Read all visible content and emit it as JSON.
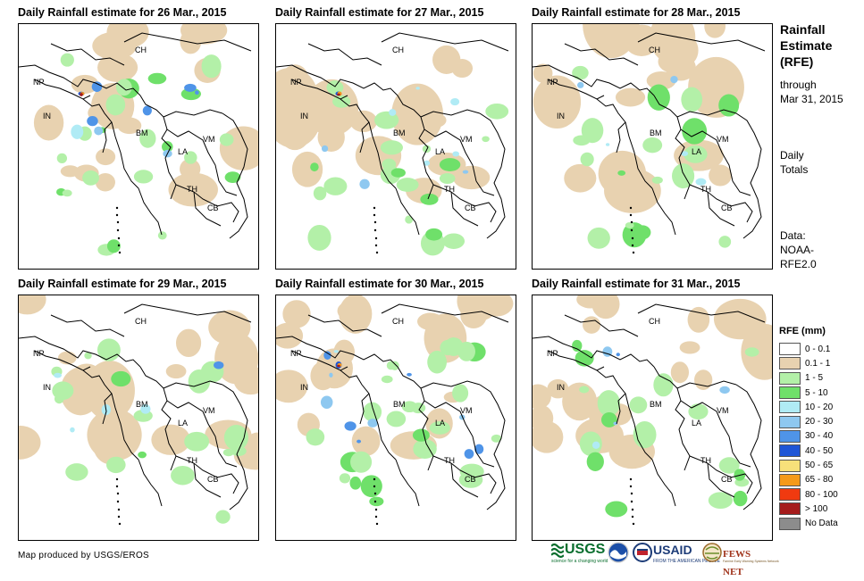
{
  "panels": [
    {
      "title": "Daily Rainfall estimate for 26 Mar., 2015",
      "wet_level": 2,
      "seed": 11
    },
    {
      "title": "Daily Rainfall estimate for 27 Mar., 2015",
      "wet_level": 2,
      "seed": 23
    },
    {
      "title": "Daily Rainfall estimate for 28 Mar., 2015",
      "wet_level": 1,
      "seed": 37
    },
    {
      "title": "Daily Rainfall estimate for 29 Mar., 2015",
      "wet_level": 1,
      "seed": 41
    },
    {
      "title": "Daily Rainfall estimate for 30 Mar., 2015",
      "wet_level": 3,
      "seed": 53
    },
    {
      "title": "Daily Rainfall estimate for 31 Mar., 2015",
      "wet_level": 1,
      "seed": 67
    }
  ],
  "country_labels": {
    "ch": "CH",
    "np": "NP",
    "in": "IN",
    "bm": "BM",
    "la": "LA",
    "vm": "VM",
    "th": "TH",
    "cb": "CB"
  },
  "sidebar": {
    "title_line1": "Rainfall",
    "title_line2": "Estimate",
    "title_line3": "(RFE)",
    "through_line1": "through",
    "through_line2": "Mar 31, 2015",
    "totals_line1": "Daily",
    "totals_line2": "Totals",
    "data_line1": "Data:",
    "data_line2": "NOAA-",
    "data_line3": "RFE2.0"
  },
  "legend": {
    "title": "RFE (mm)",
    "items": [
      {
        "label": "0 - 0.1",
        "color": "#ffffff"
      },
      {
        "label": "0.1 - 1",
        "color": "#e8d2b0"
      },
      {
        "label": "1 - 5",
        "color": "#b3f0a8"
      },
      {
        "label": "5 - 10",
        "color": "#6fe06a"
      },
      {
        "label": "10 - 20",
        "color": "#b0ebf5"
      },
      {
        "label": "20 - 30",
        "color": "#8ec8f0"
      },
      {
        "label": "30 - 40",
        "color": "#4f94e8"
      },
      {
        "label": "40 - 50",
        "color": "#1e55d6"
      },
      {
        "label": "50 - 65",
        "color": "#f7e07a"
      },
      {
        "label": "65 - 80",
        "color": "#f59a1a"
      },
      {
        "label": "80 - 100",
        "color": "#f03a10"
      },
      {
        "label": "> 100",
        "color": "#a51c1c"
      },
      {
        "label": "No Data",
        "color": "#8c8c8c"
      }
    ]
  },
  "footer": {
    "credit": "Map produced by USGS/EROS",
    "usgs_logo": "USGS",
    "usgs_tagline": "science for a changing world",
    "usaid_logo": "USAID",
    "usaid_tagline": "FROM THE AMERICAN PEOPLE",
    "fewsnet_logo": "FEWS NET",
    "fewsnet_tagline": "Famine Early Warning Systems Network"
  }
}
